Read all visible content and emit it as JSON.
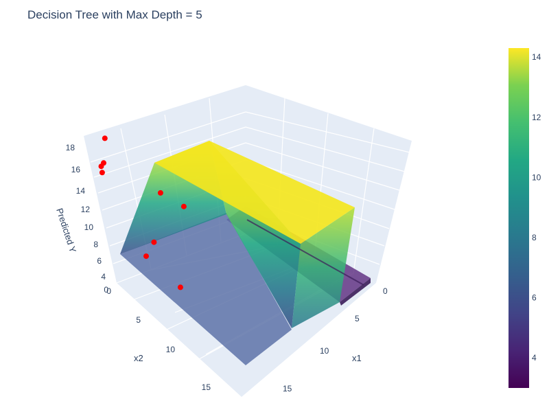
{
  "chart_data": {
    "type": "surface3d",
    "title": "Decision Tree with Max Depth = 5",
    "xlabel": "x1",
    "ylabel": "x2",
    "zlabel": "Predicted Y",
    "x_ticks": [
      "0",
      "5",
      "10",
      "15"
    ],
    "y_ticks": [
      "0",
      "5",
      "10",
      "15"
    ],
    "z_ticks": [
      "0",
      "4",
      "6",
      "8",
      "10",
      "12",
      "14",
      "16",
      "18"
    ],
    "colorscale": "Viridis",
    "colorbar": {
      "ticks": [
        "4",
        "6",
        "8",
        "10",
        "12",
        "14"
      ],
      "range": [
        3,
        14.3
      ]
    },
    "surface_regions": [
      {
        "x1_range": [
          0,
          11
        ],
        "x2_range": [
          0,
          17
        ],
        "predicted_y": 5.5
      },
      {
        "x1_range": [
          0,
          11
        ],
        "x2_range": [
          -2,
          0
        ],
        "predicted_y": 14.3
      },
      {
        "x1_range": [
          11,
          13
        ],
        "x2_range": [
          -2,
          17
        ],
        "predicted_y": 3.0
      }
    ],
    "points": [
      {
        "x1": 2.5,
        "x2": 7.5,
        "y": 5.6
      },
      {
        "x1": 1.5,
        "x2": 6.0,
        "y": 7.6
      },
      {
        "x1": 3.0,
        "x2": 3.0,
        "y": 5.4
      },
      {
        "x1": 0.5,
        "x2": 2.0,
        "y": 16.8
      },
      {
        "x1": 3.0,
        "x2": -0.5,
        "y": 18.2
      },
      {
        "x1": 2.5,
        "x2": -0.5,
        "y": 17.3
      },
      {
        "x1": 2.0,
        "x2": -0.2,
        "y": 15.8
      },
      {
        "x1": 7.0,
        "x2": -1.0,
        "y": 10.8
      },
      {
        "x1": 9.5,
        "x2": 0.2,
        "y": 8.3
      }
    ]
  }
}
